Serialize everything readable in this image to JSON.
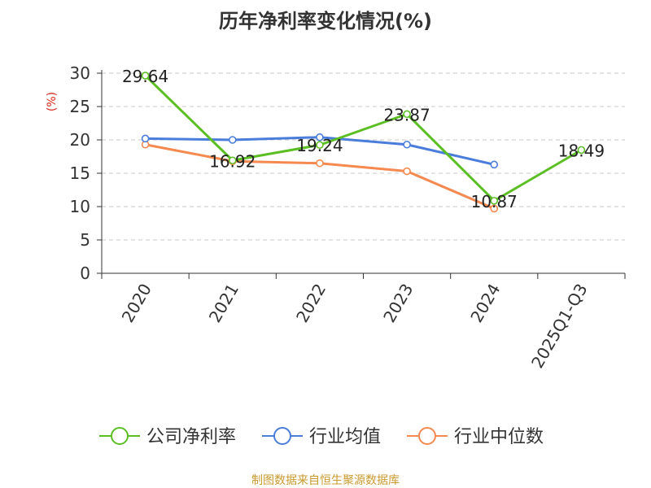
{
  "title": "历年净利率变化情况(%)",
  "source": "制图数据来自恒生聚源数据库",
  "chart_data": {
    "type": "line",
    "title": "历年净利率变化情况(%)",
    "ylabel": "(%)",
    "xlabel": "",
    "categories": [
      "2020",
      "2021",
      "2022",
      "2023",
      "2024",
      "2025Q1-Q3"
    ],
    "yticks": [
      0,
      5,
      10,
      15,
      20,
      25,
      30
    ],
    "ylim": [
      0,
      30
    ],
    "grid": true,
    "legend_position": "bottom",
    "series": [
      {
        "name": "公司净利率",
        "color": "#5bbf24",
        "values": [
          29.64,
          16.92,
          19.24,
          23.87,
          10.87,
          18.49
        ],
        "labels": [
          "29.64",
          "16.92",
          "19.24",
          "23.87",
          "10.87",
          "18.49"
        ]
      },
      {
        "name": "行业均值",
        "color": "#4a7ddb",
        "values": [
          20.2,
          20.0,
          20.4,
          19.3,
          16.3,
          null
        ]
      },
      {
        "name": "行业中位数",
        "color": "#f5894f",
        "values": [
          19.3,
          16.8,
          16.5,
          15.3,
          9.7,
          null
        ]
      }
    ]
  }
}
